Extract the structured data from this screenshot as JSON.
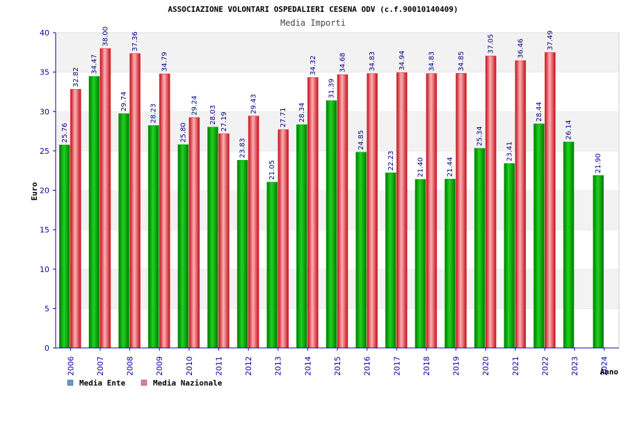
{
  "chart_data": {
    "type": "bar",
    "title": "ASSOCIAZIONE VOLONTARI OSPEDALIERI CESENA ODV (c.f.90010140409)",
    "subtitle": "Media Importi",
    "xlabel": "Anno",
    "ylabel": "Euro",
    "ylim": [
      0,
      40
    ],
    "yticks": [
      "0",
      "5",
      "10",
      "15",
      "20",
      "25",
      "30",
      "35",
      "40"
    ],
    "grid": true,
    "legend_position": "bottom-left",
    "categories": [
      "2006",
      "2007",
      "2008",
      "2009",
      "2010",
      "2011",
      "2012",
      "2013",
      "2014",
      "2015",
      "2016",
      "2017",
      "2018",
      "2019",
      "2020",
      "2021",
      "2022",
      "2023",
      "2024"
    ],
    "series": [
      {
        "name": "Media Ente",
        "color": "#00b000",
        "legend_color": "#5b9bd5",
        "values": [
          25.76,
          34.47,
          29.74,
          28.23,
          25.8,
          28.03,
          23.83,
          21.05,
          28.34,
          31.39,
          24.85,
          22.23,
          21.4,
          21.44,
          25.34,
          23.41,
          28.44,
          26.14,
          21.9
        ],
        "labels": [
          "25.76",
          "34.47",
          "29.74",
          "28.23",
          "25.80",
          "28.03",
          "23.83",
          "21.05",
          "28.34",
          "31.39",
          "24.85",
          "22.23",
          "21.40",
          "21.44",
          "25.34",
          "23.41",
          "28.44",
          "26.14",
          "21.90"
        ]
      },
      {
        "name": "Media Nazionale",
        "color": "#e8202a",
        "legend_color": "#e07aa8",
        "values": [
          32.82,
          38.0,
          37.36,
          34.79,
          29.24,
          27.19,
          29.43,
          27.71,
          34.32,
          34.68,
          34.83,
          34.94,
          34.83,
          34.85,
          37.05,
          36.46,
          37.49,
          null,
          null
        ],
        "labels": [
          "32.82",
          "38.00",
          "37.36",
          "34.79",
          "29.24",
          "27.19",
          "29.43",
          "27.71",
          "34.32",
          "34.68",
          "34.83",
          "34.94",
          "34.83",
          "34.85",
          "37.05",
          "36.46",
          "37.49",
          null,
          null
        ]
      }
    ],
    "colors": {
      "axis": "#0000a0",
      "band_shaded": "#f2f2f2",
      "band_plain": "#ffffff",
      "gridline": "#dddddd"
    }
  }
}
